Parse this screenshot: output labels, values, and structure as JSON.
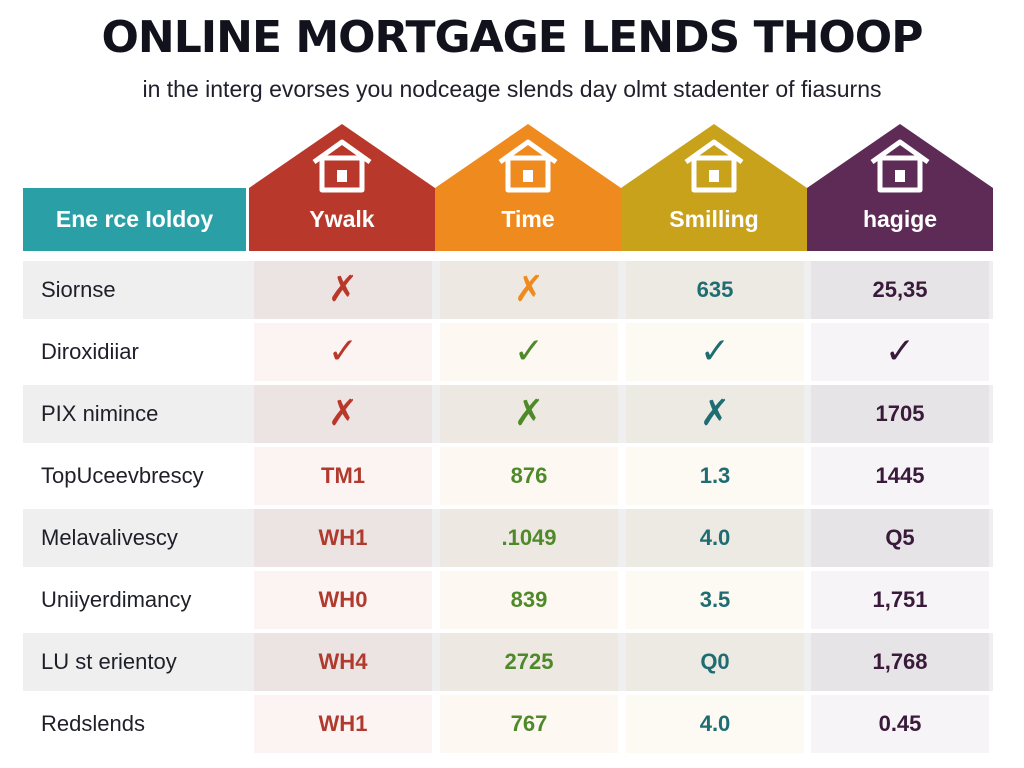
{
  "title": "ONLINE MORTGAGE LENDS THOOP",
  "subtitle": "in the interg evorses you nodceage slends day olmt stadenter of fiasurns",
  "colors": {
    "teal": "#2aa0a6",
    "red": "#b8392b",
    "orange": "#ef8a1f",
    "gold": "#c9a21c",
    "purple": "#5e2a56",
    "red_text": "#b03a2e",
    "green_text": "#4f8a2a",
    "teal_text": "#1f6d73",
    "purple_text": "#3a1a3a"
  },
  "header": {
    "lead": "Ene rce Ioldoy",
    "columns": [
      {
        "label": "Ywalk",
        "icon": "house-icon"
      },
      {
        "label": "Time",
        "icon": "house-icon"
      },
      {
        "label": "Smilling",
        "icon": "house-icon"
      },
      {
        "label": "hagige",
        "icon": "house-icon"
      }
    ]
  },
  "rows": [
    {
      "label": "Siornse",
      "cells": [
        "✗",
        "✗",
        "635",
        "25,35"
      ]
    },
    {
      "label": "Diroxidiiar",
      "cells": [
        "✓",
        "✓",
        "✓",
        "✓"
      ]
    },
    {
      "label": "PIX nimince",
      "cells": [
        "✗",
        "✗",
        "✗",
        "1705"
      ]
    },
    {
      "label": "TopUceevbrescy",
      "cells": [
        "TM1",
        "876",
        "1.3",
        "1445"
      ]
    },
    {
      "label": "Melavalivescy",
      "cells": [
        "WH1",
        ".1049",
        "4.0",
        "Q5"
      ]
    },
    {
      "label": "Uniiyerdimancy",
      "cells": [
        "WH0",
        "839",
        "3.5",
        "1,751"
      ]
    },
    {
      "label": "LU st erientoy",
      "cells": [
        "WH4",
        "2725",
        "Q0",
        "1,768"
      ]
    },
    {
      "label": "Redslends",
      "cells": [
        "WH1",
        "767",
        "4.0",
        "0.45"
      ]
    }
  ]
}
